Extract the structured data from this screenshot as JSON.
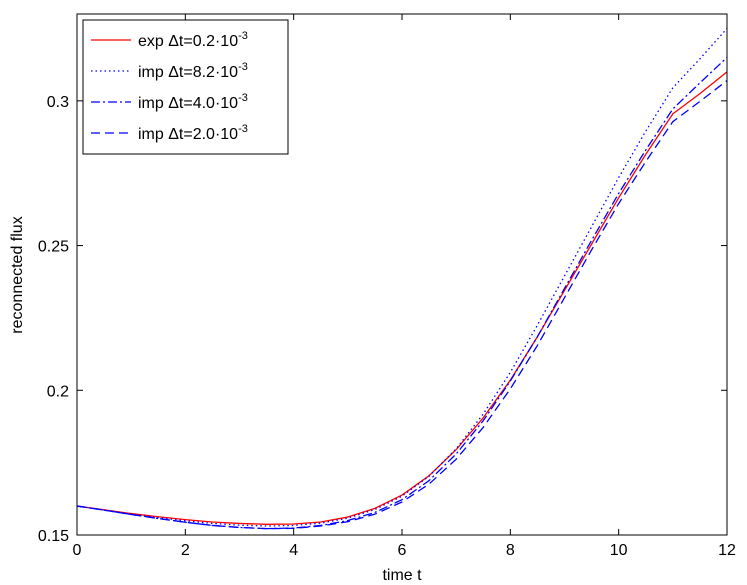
{
  "chart_data": {
    "type": "line",
    "xlabel": "time t",
    "ylabel": "reconnected flux",
    "xlim": [
      0,
      12
    ],
    "ylim": [
      0.15,
      0.33
    ],
    "xticks": [
      0,
      2,
      4,
      6,
      8,
      10,
      12
    ],
    "yticks": [
      0.15,
      0.2,
      0.25,
      0.3
    ],
    "ytick_labels": [
      "0.15",
      "0.2",
      "0.25",
      "0.3"
    ],
    "grid": false,
    "legend_position": "top-left",
    "x": [
      0,
      0.5,
      1,
      1.5,
      2,
      2.5,
      3,
      3.5,
      4,
      4.5,
      5,
      5.5,
      6,
      6.5,
      7,
      7.5,
      8,
      8.5,
      9,
      9.5,
      10,
      10.5,
      11,
      11.5,
      12
    ],
    "series": [
      {
        "name": "exp",
        "legend_prefix": "exp Δt=0.2·10",
        "legend_exp": "-3",
        "color": "#ff0000",
        "dash": "solid",
        "values": [
          0.16,
          0.1587,
          0.1574,
          0.1563,
          0.1553,
          0.1545,
          0.154,
          0.1537,
          0.1538,
          0.1545,
          0.1562,
          0.1592,
          0.1638,
          0.1705,
          0.1795,
          0.1905,
          0.2035,
          0.2185,
          0.2345,
          0.2505,
          0.2665,
          0.2815,
          0.2955,
          0.3025,
          0.31
        ]
      },
      {
        "name": "imp 8.2",
        "legend_prefix": "imp Δt=8.2·10",
        "legend_exp": "-3",
        "color": "#0000ff",
        "dash": "dotted",
        "values": [
          0.16,
          0.1586,
          0.1572,
          0.156,
          0.1549,
          0.154,
          0.1534,
          0.1531,
          0.1533,
          0.1541,
          0.1558,
          0.1588,
          0.1634,
          0.1703,
          0.1798,
          0.1918,
          0.2062,
          0.2225,
          0.2395,
          0.2565,
          0.2735,
          0.2895,
          0.3045,
          0.3145,
          0.325
        ]
      },
      {
        "name": "imp 4.0",
        "legend_prefix": "imp Δt=4.0·10",
        "legend_exp": "-3",
        "color": "#0000ff",
        "dash": "dashdot",
        "values": [
          0.16,
          0.1586,
          0.1571,
          0.1557,
          0.1544,
          0.1533,
          0.1526,
          0.1522,
          0.1524,
          0.1533,
          0.155,
          0.1578,
          0.1622,
          0.1688,
          0.178,
          0.1895,
          0.2032,
          0.2185,
          0.2352,
          0.2518,
          0.268,
          0.283,
          0.2972,
          0.3062,
          0.315
        ]
      },
      {
        "name": "imp 2.0",
        "legend_prefix": "imp Δt=2.0·10",
        "legend_exp": "-3",
        "color": "#0000ff",
        "dash": "dashed",
        "values": [
          0.16,
          0.1586,
          0.1571,
          0.1557,
          0.1544,
          0.1533,
          0.1526,
          0.1522,
          0.1523,
          0.1531,
          0.1546,
          0.1572,
          0.1614,
          0.1676,
          0.1762,
          0.1872,
          0.2005,
          0.2155,
          0.232,
          0.2485,
          0.2645,
          0.279,
          0.2928,
          0.2998,
          0.307
        ]
      }
    ]
  }
}
